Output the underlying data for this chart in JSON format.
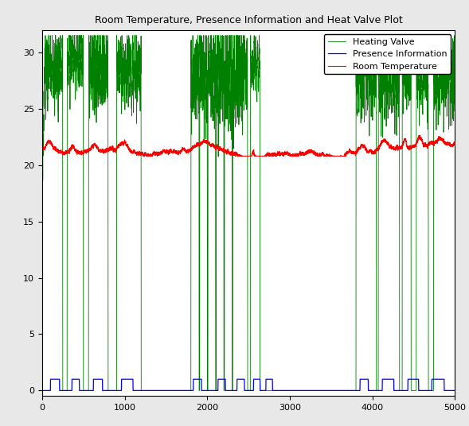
{
  "title": "Room Temperature, Presence Information and Heat Valve Plot",
  "xlim": [
    0,
    5000
  ],
  "ylim": [
    -0.5,
    32
  ],
  "yticks": [
    0,
    5,
    10,
    15,
    20,
    25,
    30
  ],
  "xticks": [
    0,
    1000,
    2000,
    3000,
    4000,
    5000
  ],
  "legend_labels": [
    "Heating Valve",
    "Presence Information",
    "Room Temperature"
  ],
  "heating_valve_color": "green",
  "presence_color": "blue",
  "room_temp_color": "red",
  "figsize": [
    5.89,
    5.36
  ],
  "dpi": 100,
  "bg_color": "#e8e8e8",
  "ax_bg_color": "#ffffff"
}
